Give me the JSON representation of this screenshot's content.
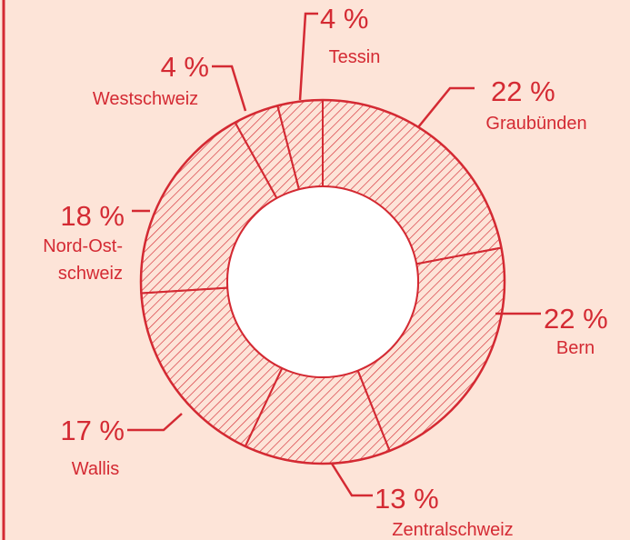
{
  "chart_data": {
    "type": "donut",
    "categories": [
      "Graubünden",
      "Bern",
      "Zentralschweiz",
      "Wallis",
      "Nord-Ost-\nschweiz",
      "Westschweiz",
      "Tessin"
    ],
    "values": [
      22,
      22,
      13,
      17,
      18,
      4,
      4
    ],
    "value_labels": [
      "22 %",
      "22 %",
      "13 %",
      "17 %",
      "18 %",
      "4 %",
      "4 %"
    ],
    "color": "#d42a33"
  }
}
